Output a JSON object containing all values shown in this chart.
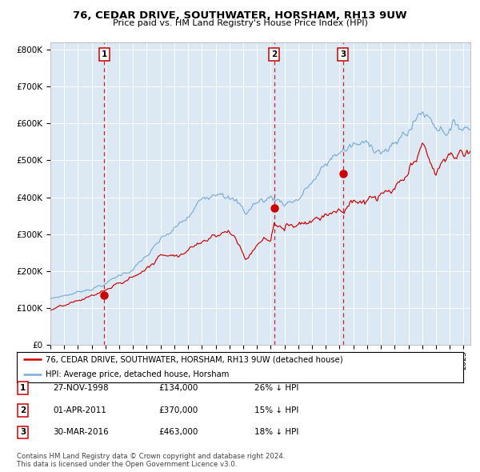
{
  "title": "76, CEDAR DRIVE, SOUTHWATER, HORSHAM, RH13 9UW",
  "subtitle": "Price paid vs. HM Land Registry's House Price Index (HPI)",
  "background_color": "#dce9f5",
  "plot_bg_color": "#dce9f5",
  "ylim": [
    0,
    820000
  ],
  "yticks": [
    0,
    100000,
    200000,
    300000,
    400000,
    500000,
    600000,
    700000,
    800000
  ],
  "ytick_labels": [
    "£0",
    "£100K",
    "£200K",
    "£300K",
    "£400K",
    "£500K",
    "£600K",
    "£700K",
    "£800K"
  ],
  "xlim_start": 1995.0,
  "xlim_end": 2025.5,
  "sale_color": "#cc0000",
  "hpi_color": "#7aadd4",
  "sale_dates": [
    1998.917,
    2011.25,
    2016.247
  ],
  "sale_prices": [
    134000,
    370000,
    463000
  ],
  "sale_labels": [
    "1",
    "2",
    "3"
  ],
  "vline_dates": [
    1998.917,
    2011.25,
    2016.247
  ],
  "transaction_rows": [
    {
      "num": "1",
      "date": "27-NOV-1998",
      "price": "£134,000",
      "hpi": "26% ↓ HPI"
    },
    {
      "num": "2",
      "date": "01-APR-2011",
      "price": "£370,000",
      "hpi": "15% ↓ HPI"
    },
    {
      "num": "3",
      "date": "30-MAR-2016",
      "price": "£463,000",
      "hpi": "18% ↓ HPI"
    }
  ],
  "legend_line1": "76, CEDAR DRIVE, SOUTHWATER, HORSHAM, RH13 9UW (detached house)",
  "legend_line2": "HPI: Average price, detached house, Horsham",
  "footnote": "Contains HM Land Registry data © Crown copyright and database right 2024.\nThis data is licensed under the Open Government Licence v3.0."
}
